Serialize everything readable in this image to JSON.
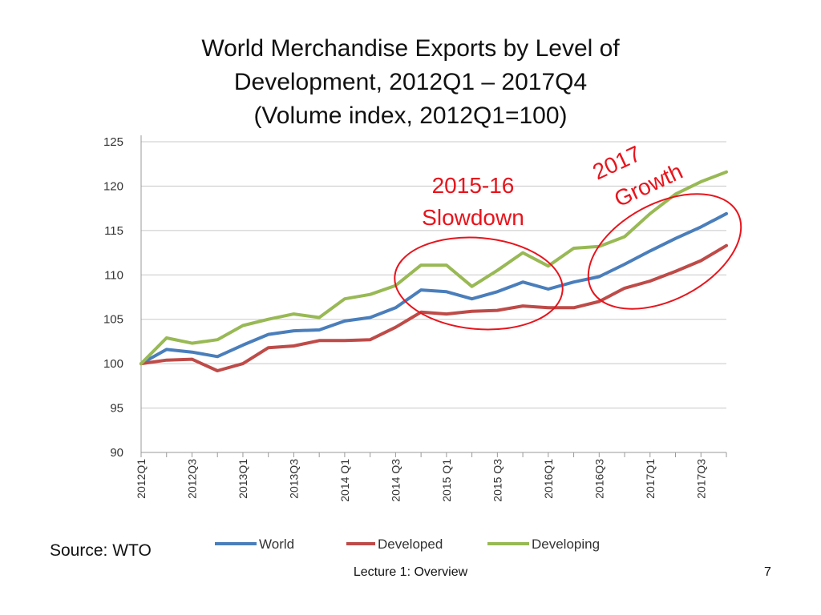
{
  "slide": {
    "title_lines": [
      "World Merchandise Exports by Level of",
      "Development, 2012Q1 – 2017Q4",
      "(Volume index, 2012Q1=100)"
    ],
    "source": "Source:  WTO",
    "footer": "Lecture 1:  Overview",
    "page_number": "7"
  },
  "chart_data": {
    "type": "line",
    "x": [
      "2012Q1",
      "2012Q2",
      "2012Q3",
      "2012Q4",
      "2013Q1",
      "2013Q2",
      "2013Q3",
      "2013Q4",
      "2014Q1",
      "2014Q2",
      "2014Q3",
      "2014Q4",
      "2015Q1",
      "2015Q2",
      "2015Q3",
      "2015Q4",
      "2016Q1",
      "2016Q2",
      "2016Q3",
      "2016Q4",
      "2017Q1",
      "2017Q2",
      "2017Q3",
      "2017Q4"
    ],
    "x_tick_labels": [
      "2012Q1",
      "2012Q3",
      "2013Q1",
      "2013Q3",
      "2014 Q1",
      "2014 Q3",
      "2015 Q1",
      "2015 Q3",
      "2016Q1",
      "2016Q3",
      "2017Q1",
      "2017Q3"
    ],
    "ylim": [
      90,
      125
    ],
    "yticks": [
      90,
      95,
      100,
      105,
      110,
      115,
      120,
      125
    ],
    "grid": true,
    "legend_position": "bottom",
    "series": [
      {
        "name": "World",
        "color": "#4a7ebb",
        "values": [
          100,
          101.6,
          101.3,
          100.8,
          102.1,
          103.3,
          103.7,
          103.8,
          104.8,
          105.2,
          106.3,
          108.3,
          108.1,
          107.3,
          108.1,
          109.2,
          108.4,
          109.2,
          109.8,
          111.2,
          112.7,
          114.1,
          115.4,
          116.9
        ]
      },
      {
        "name": "Developed",
        "color": "#be4b48",
        "values": [
          100,
          100.4,
          100.5,
          99.2,
          100.0,
          101.8,
          102.0,
          102.6,
          102.6,
          102.7,
          104.1,
          105.8,
          105.6,
          105.9,
          106.0,
          106.5,
          106.3,
          106.3,
          107.0,
          108.5,
          109.3,
          110.4,
          111.6,
          113.3
        ]
      },
      {
        "name": "Developing",
        "color": "#98b954",
        "values": [
          100,
          102.9,
          102.3,
          102.7,
          104.3,
          105.0,
          105.6,
          105.2,
          107.3,
          107.8,
          108.8,
          111.1,
          111.1,
          108.7,
          110.5,
          112.5,
          111.0,
          113.0,
          113.2,
          114.3,
          116.9,
          119.1,
          120.5,
          121.6
        ]
      }
    ],
    "annotations": [
      {
        "lines": [
          "2015-16",
          "Slowdown"
        ],
        "color": "#e8141c"
      },
      {
        "lines": [
          "2017",
          "Growth"
        ],
        "color": "#e8141c"
      }
    ]
  }
}
